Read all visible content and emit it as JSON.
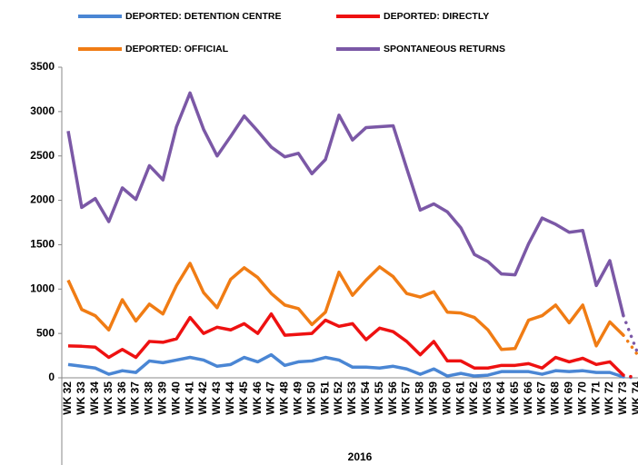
{
  "chart_data": {
    "type": "line",
    "x_label": "2016",
    "categories": [
      "WK 32",
      "WK 33",
      "WK 34",
      "WK 35",
      "WK 36",
      "WK 37",
      "WK 38",
      "WK 39",
      "WK 40",
      "WK 41",
      "WK 42",
      "WK 43",
      "WK 44",
      "WK 45",
      "WK 46",
      "WK 47",
      "WK 48",
      "WK 49",
      "WK 50",
      "WK 51",
      "WK 52",
      "WK 53",
      "WK 54",
      "WK 55",
      "WK 56",
      "WK 57",
      "WK 58",
      "WK 59",
      "WK 60",
      "WK 61",
      "WK 62",
      "WK 63",
      "WK 64",
      "WK 65",
      "WK 66",
      "WK 67",
      "WK 68",
      "WK 69",
      "WK 70",
      "WK 71",
      "WK 72",
      "WK 73",
      "WK 74"
    ],
    "series": [
      {
        "name": "DEPORTED: DETENTION CENTRE",
        "color": "#4a86d4",
        "values": [
          150,
          130,
          110,
          40,
          80,
          60,
          190,
          170,
          200,
          230,
          200,
          130,
          150,
          230,
          180,
          260,
          140,
          180,
          190,
          230,
          200,
          120,
          120,
          110,
          130,
          100,
          40,
          100,
          20,
          50,
          20,
          30,
          70,
          70,
          70,
          40,
          80,
          70,
          80,
          60,
          60,
          10,
          0
        ]
      },
      {
        "name": "DEPORTED: DIRECTLY",
        "color": "#ee1111",
        "values": [
          360,
          355,
          345,
          230,
          320,
          230,
          410,
          400,
          440,
          680,
          500,
          570,
          540,
          610,
          500,
          720,
          480,
          490,
          500,
          650,
          580,
          610,
          430,
          560,
          520,
          410,
          260,
          410,
          190,
          190,
          110,
          110,
          140,
          140,
          160,
          110,
          230,
          180,
          220,
          150,
          180,
          30,
          0
        ]
      },
      {
        "name": "DEPORTED: OFFICIAL",
        "color": "#f07c14",
        "values": [
          1100,
          770,
          700,
          540,
          880,
          640,
          830,
          720,
          1040,
          1290,
          960,
          790,
          1110,
          1240,
          1130,
          950,
          820,
          780,
          600,
          740,
          1190,
          930,
          1100,
          1250,
          1140,
          950,
          910,
          970,
          740,
          730,
          680,
          540,
          320,
          330,
          650,
          700,
          820,
          620,
          820,
          360,
          630,
          480,
          270
        ]
      },
      {
        "name": "SPONTANEOUS RETURNS",
        "color": "#7b58a6",
        "values": [
          2780,
          1920,
          2020,
          1760,
          2140,
          2010,
          2390,
          2230,
          2830,
          3210,
          2800,
          2500,
          2720,
          2950,
          2780,
          2600,
          2490,
          2530,
          2300,
          2460,
          2960,
          2680,
          2820,
          2830,
          2840,
          2360,
          1890,
          1960,
          1870,
          1690,
          1390,
          1310,
          1170,
          1160,
          1510,
          1800,
          1730,
          1640,
          1660,
          1040,
          1320,
          700,
          300
        ]
      }
    ],
    "ylim": [
      0,
      3500
    ],
    "yticks": [
      0,
      500,
      1000,
      1500,
      2000,
      2500,
      3000,
      3500
    ],
    "last_segment_dotted": true,
    "legend": "top"
  }
}
